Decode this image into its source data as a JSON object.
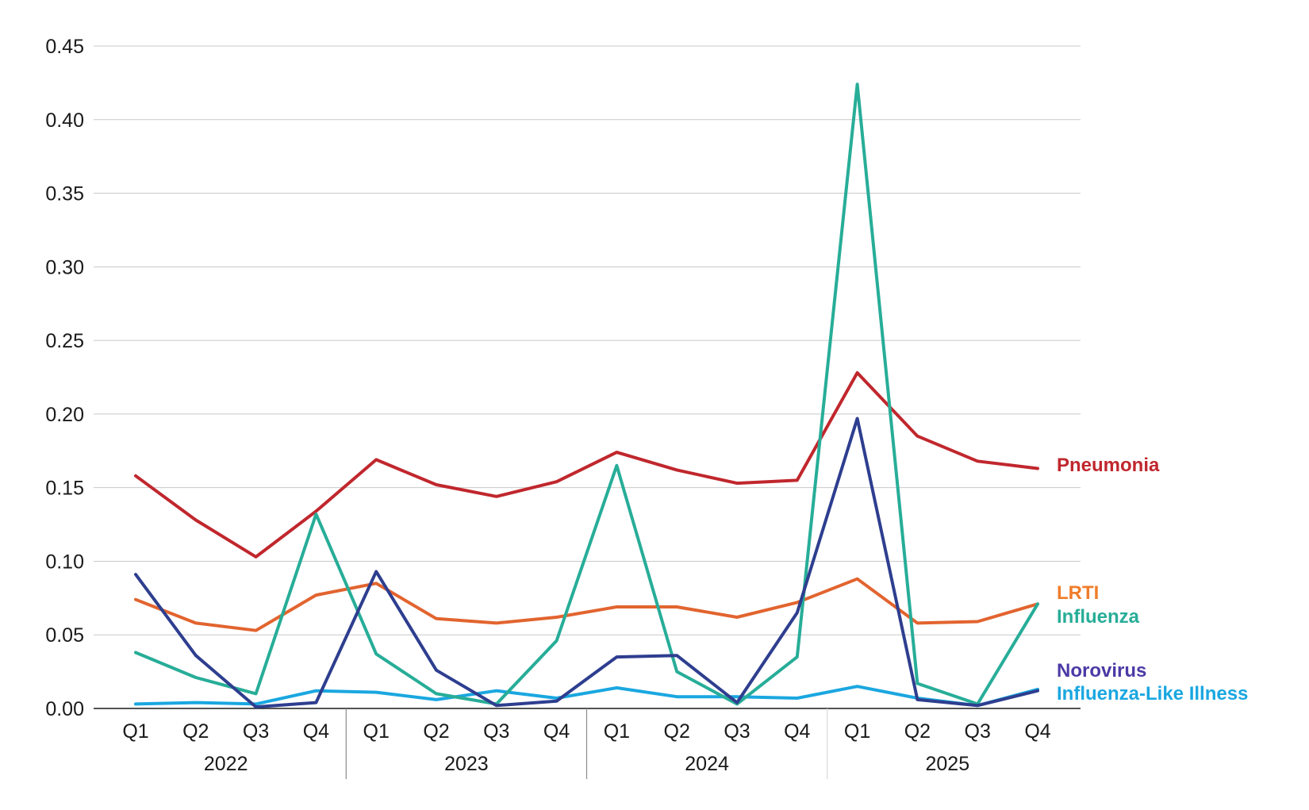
{
  "chart_data": {
    "type": "line",
    "title": "",
    "xlabel": "",
    "ylabel": "",
    "ylim": [
      0,
      0.45
    ],
    "yticks": [
      "0.00",
      "0.05",
      "0.10",
      "0.15",
      "0.20",
      "0.25",
      "0.30",
      "0.35",
      "0.40",
      "0.45"
    ],
    "grid": "horizontal",
    "legend": "direct labels at right end of lines",
    "categories": [
      "Q1",
      "Q2",
      "Q3",
      "Q4",
      "Q1",
      "Q2",
      "Q3",
      "Q4",
      "Q1",
      "Q2",
      "Q3",
      "Q4",
      "Q1",
      "Q2",
      "Q3",
      "Q4"
    ],
    "years": [
      "2022",
      "2023",
      "2024",
      "2025"
    ],
    "series": [
      {
        "name": "Pneumonia",
        "color": "#c0272d",
        "values": [
          0.158,
          0.128,
          0.103,
          0.134,
          0.169,
          0.152,
          0.144,
          0.154,
          0.174,
          0.162,
          0.153,
          0.155,
          0.228,
          0.185,
          0.168,
          0.163
        ]
      },
      {
        "name": "LRTI",
        "color": "#e2642f",
        "values": [
          0.074,
          0.058,
          0.053,
          0.077,
          0.085,
          0.061,
          0.058,
          0.062,
          0.069,
          0.069,
          0.062,
          0.072,
          0.088,
          0.058,
          0.059,
          0.071
        ]
      },
      {
        "name": "Influenza",
        "color": "#27ad98",
        "values": [
          0.038,
          0.021,
          0.01,
          0.132,
          0.037,
          0.01,
          0.003,
          0.046,
          0.165,
          0.025,
          0.003,
          0.035,
          0.424,
          0.017,
          0.003,
          0.071
        ]
      },
      {
        "name": "Norovirus",
        "color": "#2e3e8f",
        "values": [
          0.091,
          0.036,
          0.001,
          0.004,
          0.093,
          0.026,
          0.002,
          0.005,
          0.035,
          0.036,
          0.004,
          0.065,
          0.197,
          0.006,
          0.002,
          0.012
        ]
      },
      {
        "name": "Influenza-Like Illness",
        "color": "#1aa7e0",
        "values": [
          0.003,
          0.004,
          0.003,
          0.012,
          0.011,
          0.006,
          0.012,
          0.007,
          0.014,
          0.008,
          0.008,
          0.007,
          0.015,
          0.007,
          0.002,
          0.013
        ]
      }
    ],
    "label_colors": {
      "Pneumonia": "#c0272d",
      "LRTI": "#ef7d2a",
      "Influenza": "#27ad98",
      "Norovirus": "#4b3aa6",
      "Influenza-Like Illness": "#1aa7e0"
    }
  }
}
